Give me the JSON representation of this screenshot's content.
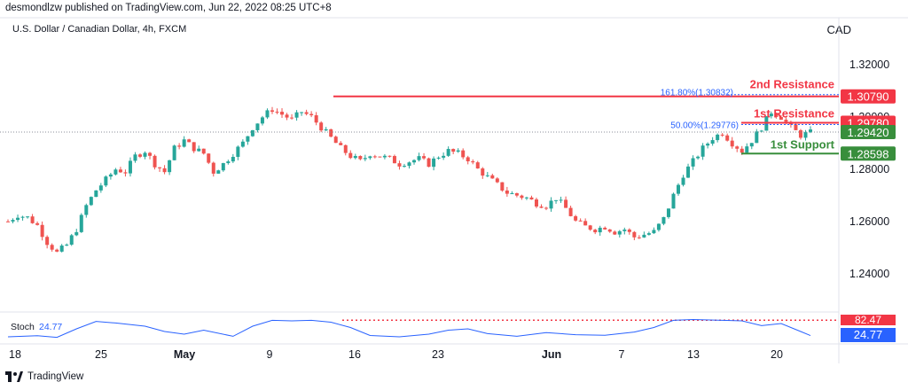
{
  "header": {
    "published": "desmondlzw published on TradingView.com, Jun 22, 2022 08:25 UTC+8",
    "symbol": "U.S. Dollar / Canadian Dollar, 4h, FXCM",
    "currency": "CAD"
  },
  "footer": {
    "brand": "TradingView"
  },
  "colors": {
    "bull": "#26a69a",
    "bear": "#ef5350",
    "resistance": "#f23645",
    "support": "#388e3c",
    "fib": "#2962ff",
    "stoch": "#2962ff"
  },
  "chart_data": {
    "type": "candlestick",
    "instrument": "U.S. Dollar / Canadian Dollar",
    "timeframe": "4h",
    "source": "FXCM",
    "y_axis": {
      "ticks": [
        "1.32000",
        "1.30000",
        "1.28000",
        "1.26000",
        "1.24000"
      ],
      "tick_values": [
        1.32,
        1.3,
        1.28,
        1.26,
        1.24
      ],
      "range": [
        1.226,
        1.338
      ]
    },
    "x_axis": {
      "labels": [
        "18",
        "25",
        "May",
        "9",
        "16",
        "23",
        "Jun",
        "7",
        "13",
        "20"
      ],
      "bold_labels": [
        "May",
        "Jun"
      ]
    },
    "price_path": [
      [
        0,
        1.26
      ],
      [
        2,
        1.2625
      ],
      [
        4,
        1.2615
      ],
      [
        6,
        1.2585
      ],
      [
        8,
        1.252
      ],
      [
        10,
        1.248
      ],
      [
        12,
        1.251
      ],
      [
        14,
        1.257
      ],
      [
        16,
        1.266
      ],
      [
        18,
        1.272
      ],
      [
        20,
        1.276
      ],
      [
        22,
        1.28
      ],
      [
        24,
        1.279
      ],
      [
        26,
        1.285
      ],
      [
        28,
        1.287
      ],
      [
        30,
        1.282
      ],
      [
        32,
        1.279
      ],
      [
        34,
        1.288
      ],
      [
        36,
        1.291
      ],
      [
        38,
        1.288
      ],
      [
        40,
        1.286
      ],
      [
        42,
        1.279
      ],
      [
        44,
        1.282
      ],
      [
        46,
        1.286
      ],
      [
        48,
        1.29
      ],
      [
        50,
        1.296
      ],
      [
        52,
        1.3
      ],
      [
        54,
        1.303
      ],
      [
        56,
        1.301
      ],
      [
        58,
        1.299
      ],
      [
        60,
        1.302
      ],
      [
        62,
        1.3
      ],
      [
        64,
        1.296
      ],
      [
        66,
        1.292
      ],
      [
        68,
        1.288
      ],
      [
        70,
        1.285
      ],
      [
        72,
        1.283
      ],
      [
        74,
        1.286
      ],
      [
        76,
        1.285
      ],
      [
        78,
        1.284
      ],
      [
        80,
        1.282
      ],
      [
        82,
        1.283
      ],
      [
        84,
        1.284
      ],
      [
        86,
        1.282
      ],
      [
        88,
        1.285
      ],
      [
        90,
        1.287
      ],
      [
        92,
        1.286
      ],
      [
        94,
        1.284
      ],
      [
        96,
        1.28
      ],
      [
        98,
        1.277
      ],
      [
        100,
        1.274
      ],
      [
        102,
        1.271
      ],
      [
        104,
        1.27
      ],
      [
        106,
        1.269
      ],
      [
        108,
        1.267
      ],
      [
        110,
        1.266
      ],
      [
        112,
        1.269
      ],
      [
        114,
        1.265
      ],
      [
        116,
        1.26
      ],
      [
        118,
        1.258
      ],
      [
        120,
        1.257
      ],
      [
        122,
        1.258
      ],
      [
        124,
        1.256
      ],
      [
        126,
        1.257
      ],
      [
        128,
        1.254
      ],
      [
        130,
        1.255
      ],
      [
        132,
        1.256
      ],
      [
        134,
        1.261
      ],
      [
        136,
        1.27
      ],
      [
        138,
        1.278
      ],
      [
        140,
        1.283
      ],
      [
        142,
        1.288
      ],
      [
        144,
        1.292
      ],
      [
        146,
        1.294
      ],
      [
        148,
        1.29
      ],
      [
        150,
        1.287
      ],
      [
        152,
        1.291
      ],
      [
        154,
        1.296
      ],
      [
        156,
        1.302
      ],
      [
        158,
        1.3
      ],
      [
        160,
        1.296
      ],
      [
        162,
        1.293
      ],
      [
        164,
        1.294
      ]
    ],
    "levels": [
      {
        "name": "2nd Resistance",
        "value": 1.3079,
        "label": "1.30790",
        "fib_label": "161.80%(1.30832)",
        "color": "#f23645"
      },
      {
        "name": "1st Resistance",
        "value": 1.2978,
        "label": "1.29780",
        "fib_label": "50.00%(1.29776)",
        "color": "#f23645"
      },
      {
        "name": "1st Support",
        "value": 1.28598,
        "label": "1.28598",
        "color": "#388e3c"
      }
    ],
    "current_price": {
      "value": 1.2942,
      "label": "1.29420",
      "color": "#388e3c"
    },
    "stochastic": {
      "label": "Stoch",
      "value": 24.77,
      "value_label": "24.77",
      "upper_value": 82.47,
      "upper_label": "82.47",
      "series": [
        [
          0,
          20
        ],
        [
          6,
          24
        ],
        [
          10,
          18
        ],
        [
          14,
          50
        ],
        [
          18,
          78
        ],
        [
          22,
          72
        ],
        [
          28,
          60
        ],
        [
          32,
          40
        ],
        [
          36,
          30
        ],
        [
          40,
          45
        ],
        [
          46,
          22
        ],
        [
          50,
          60
        ],
        [
          54,
          82
        ],
        [
          58,
          80
        ],
        [
          62,
          82
        ],
        [
          66,
          75
        ],
        [
          70,
          55
        ],
        [
          74,
          25
        ],
        [
          80,
          20
        ],
        [
          86,
          30
        ],
        [
          90,
          45
        ],
        [
          94,
          50
        ],
        [
          98,
          32
        ],
        [
          104,
          22
        ],
        [
          110,
          36
        ],
        [
          116,
          28
        ],
        [
          122,
          26
        ],
        [
          128,
          38
        ],
        [
          132,
          55
        ],
        [
          136,
          82
        ],
        [
          140,
          85
        ],
        [
          146,
          82
        ],
        [
          150,
          80
        ],
        [
          154,
          62
        ],
        [
          158,
          70
        ],
        [
          162,
          40
        ],
        [
          164,
          24.77
        ]
      ]
    }
  }
}
